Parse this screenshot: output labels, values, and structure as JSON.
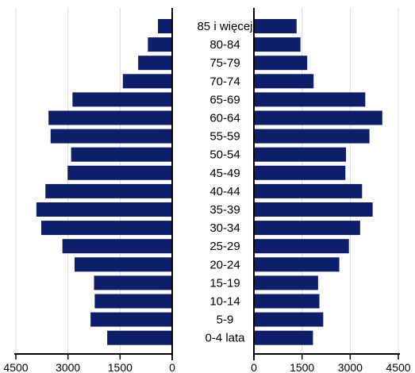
{
  "chart_data": {
    "type": "bar",
    "subtype": "population-pyramid",
    "categories": [
      "85 i więcej",
      "80-84",
      "75-79",
      "70-74",
      "65-69",
      "60-64",
      "55-59",
      "50-54",
      "45-49",
      "40-44",
      "35-39",
      "30-34",
      "25-29",
      "20-24",
      "15-19",
      "10-14",
      "5-9",
      "0-4 lata"
    ],
    "series": [
      {
        "side": "left",
        "color": "#0d1f6b",
        "values": [
          410,
          700,
          980,
          1420,
          2870,
          3560,
          3500,
          2910,
          3010,
          3650,
          3910,
          3770,
          3160,
          2810,
          2250,
          2230,
          2350,
          1870
        ]
      },
      {
        "side": "right",
        "color": "#0d1f6b",
        "values": [
          1330,
          1450,
          1660,
          1860,
          3470,
          4000,
          3600,
          2870,
          2850,
          3370,
          3700,
          3310,
          2960,
          2660,
          2000,
          2040,
          2160,
          1840
        ]
      }
    ],
    "xlim": [
      0,
      4500
    ],
    "left_ticks": [
      "4500",
      "3000",
      "1500",
      "0"
    ],
    "right_ticks": [
      "0",
      "1500",
      "3000",
      "4500"
    ],
    "grid": true,
    "gridline_color": "#dddddd",
    "axis_color": "#000000"
  }
}
